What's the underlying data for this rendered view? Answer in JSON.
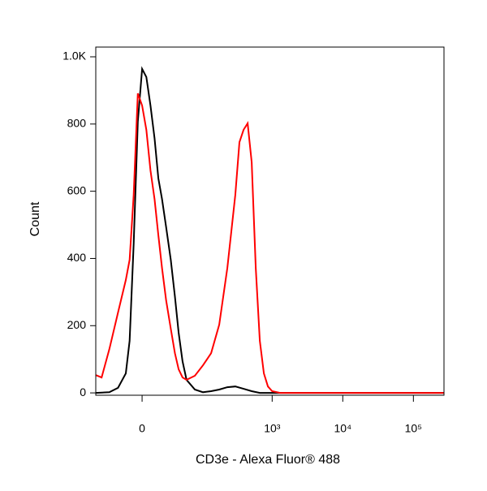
{
  "chart_data": {
    "type": "line",
    "x_label": "CD3e - Alexa Fluor® 488",
    "y_label": "Count",
    "x_scale": "biexponential",
    "xlim": [
      -62,
      271000
    ],
    "xticks": [
      0,
      {
        "value": 1000,
        "label": "10³"
      },
      {
        "value": 10000,
        "label": "10⁴"
      },
      {
        "value": 100000,
        "label": "10⁵"
      }
    ],
    "ylim": [
      -7,
      1029
    ],
    "yticks": [
      0,
      200,
      400,
      600,
      800,
      {
        "value": 1000,
        "label": "1.0K"
      }
    ],
    "series": [
      {
        "color": "#000000",
        "x": [
          -62,
          -37,
          -25,
          -16,
          -12,
          -8,
          -4,
          0,
          4,
          8,
          12,
          16,
          20,
          25,
          31,
          37,
          43,
          50,
          58,
          78,
          103,
          135,
          177,
          231,
          300,
          393,
          513,
          668,
          870,
          271000
        ],
        "values": [
          0,
          2,
          15,
          58,
          155,
          444,
          807,
          964,
          940,
          855,
          758,
          638,
          577,
          493,
          396,
          287,
          179,
          94,
          39,
          10,
          2,
          5,
          10,
          17,
          19,
          12,
          5,
          0,
          0,
          0
        ]
      },
      {
        "color": "#ff0000",
        "x": [
          -62,
          -50,
          -37,
          -25,
          -16,
          -12,
          -8,
          -4,
          0,
          4,
          8,
          12,
          16,
          20,
          25,
          31,
          37,
          43,
          50,
          58,
          78,
          103,
          135,
          177,
          231,
          300,
          344,
          393,
          449,
          513,
          585,
          668,
          763,
          870,
          1000,
          1296,
          1930,
          271000
        ],
        "values": [
          53,
          46,
          130,
          239,
          336,
          396,
          589,
          891,
          855,
          783,
          662,
          577,
          469,
          372,
          275,
          191,
          118,
          70,
          46,
          39,
          51,
          82,
          118,
          203,
          372,
          589,
          746,
          783,
          802,
          686,
          372,
          155,
          58,
          19,
          5,
          0,
          0,
          0
        ]
      }
    ]
  }
}
